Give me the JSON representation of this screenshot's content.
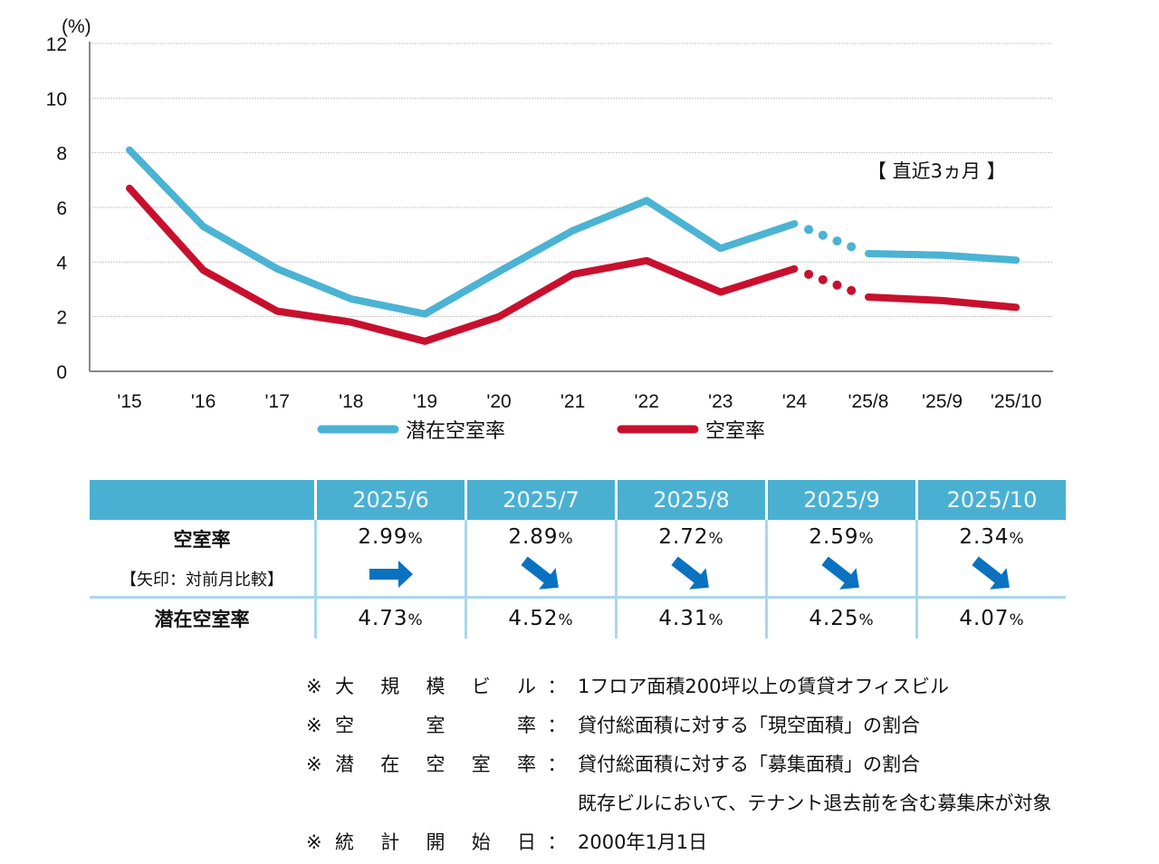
{
  "chart_data": {
    "type": "line",
    "ylabel": "(%)",
    "ylim": [
      0,
      12
    ],
    "yticks": [
      0,
      2,
      4,
      6,
      8,
      10,
      12
    ],
    "grid": true,
    "categories": [
      "'15",
      "'16",
      "'17",
      "'18",
      "'19",
      "'20",
      "'21",
      "'22",
      "'23",
      "'24",
      "'25/8",
      "'25/9",
      "'25/10"
    ],
    "series": [
      {
        "name": "潜在空室率",
        "color": "#4BB3D3",
        "values": [
          8.1,
          5.3,
          3.75,
          2.65,
          2.1,
          3.65,
          5.15,
          6.25,
          4.5,
          5.4,
          4.31,
          4.25,
          4.07
        ]
      },
      {
        "name": "空室率",
        "color": "#C8102E",
        "values": [
          6.7,
          3.7,
          2.2,
          1.8,
          1.1,
          2.0,
          3.55,
          4.05,
          2.9,
          3.75,
          2.72,
          2.59,
          2.34
        ]
      }
    ],
    "dotted_segment": {
      "from": "'24",
      "to": "'25/8"
    },
    "annotation": "【 直近3ヵ月 】",
    "legend_position": "bottom"
  },
  "table": {
    "columns": [
      "2025/6",
      "2025/7",
      "2025/8",
      "2025/9",
      "2025/10"
    ],
    "vacancy": {
      "label": "空室率",
      "sublabel": "【矢印：対前月比較】",
      "values": [
        "2.99",
        "2.89",
        "2.72",
        "2.59",
        "2.34"
      ],
      "trends": [
        "flat",
        "down",
        "down",
        "down",
        "down"
      ]
    },
    "potential": {
      "label": "潜在空室率",
      "values": [
        "4.73",
        "4.52",
        "4.31",
        "4.25",
        "4.07"
      ]
    },
    "unit": "%",
    "header_color": "#4AB0D2",
    "arrow_color": "#0A72C0"
  },
  "notes": [
    {
      "mark": "※",
      "term": [
        "大",
        "規",
        "模",
        "ビ",
        "ル"
      ],
      "colon": "：",
      "desc": "1フロア面積200坪以上の賃貸オフィスビル"
    },
    {
      "mark": "※",
      "term": [
        "空",
        "室",
        "率"
      ],
      "colon": "：",
      "desc": "貸付総面積に対する「現空面積」の割合"
    },
    {
      "mark": "※",
      "term": [
        "潜",
        "在",
        "空",
        "室",
        "率"
      ],
      "colon": "：",
      "desc": "貸付総面積に対する「募集面積」の割合"
    },
    {
      "mark": "",
      "term": [],
      "colon": "",
      "desc": "既存ビルにおいて、テナント退去前を含む募集床が対象"
    },
    {
      "mark": "※",
      "term": [
        "統",
        "計",
        "開",
        "始",
        "日"
      ],
      "colon": "：",
      "desc": "2000年1月1日"
    }
  ]
}
